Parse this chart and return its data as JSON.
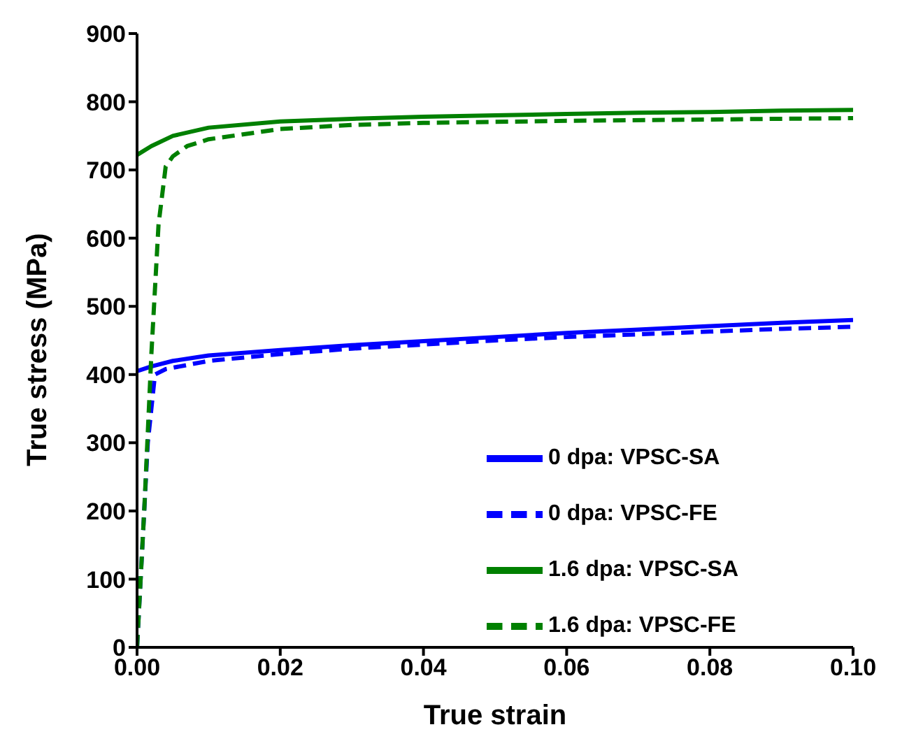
{
  "chart_data": {
    "type": "line",
    "xlabel": "True strain",
    "ylabel": "True stress (MPa)",
    "xlim": [
      0,
      0.1
    ],
    "ylim": [
      0,
      900
    ],
    "xticks": [
      {
        "value": 0,
        "label": "0.00"
      },
      {
        "value": 0.02,
        "label": "0.02"
      },
      {
        "value": 0.04,
        "label": "0.04"
      },
      {
        "value": 0.06,
        "label": "0.06"
      },
      {
        "value": 0.08,
        "label": "0.08"
      },
      {
        "value": 0.1,
        "label": "0.10"
      }
    ],
    "yticks": [
      0,
      100,
      200,
      300,
      400,
      500,
      600,
      700,
      800,
      900
    ],
    "grid": false,
    "legend": "bottom right",
    "marker": "none",
    "series": [
      {
        "name": "0 dpa: VPSC-SA",
        "color": "#0000ff",
        "line_style": "solid",
        "x": [
          0,
          0.002,
          0.005,
          0.01,
          0.02,
          0.03,
          0.04,
          0.05,
          0.06,
          0.07,
          0.08,
          0.09,
          0.1
        ],
        "values": [
          405,
          412,
          420,
          428,
          436,
          443,
          449,
          455,
          461,
          466,
          471,
          476,
          480
        ]
      },
      {
        "name": "0 dpa: VPSC-FE",
        "color": "#0000ff",
        "line_style": "dashed",
        "x": [
          0,
          0.0015,
          0.0025,
          0.004,
          0.01,
          0.02,
          0.03,
          0.04,
          0.05,
          0.06,
          0.07,
          0.08,
          0.09,
          0.1
        ],
        "values": [
          0,
          300,
          400,
          408,
          420,
          430,
          438,
          444,
          450,
          455,
          459,
          463,
          467,
          470
        ]
      },
      {
        "name": "1.6 dpa: VPSC-SA",
        "color": "#008000",
        "line_style": "solid",
        "x": [
          0,
          0.002,
          0.005,
          0.01,
          0.02,
          0.03,
          0.04,
          0.05,
          0.06,
          0.07,
          0.08,
          0.09,
          0.1
        ],
        "values": [
          722,
          735,
          750,
          762,
          771,
          775,
          778,
          780,
          782,
          784,
          785,
          787,
          788
        ]
      },
      {
        "name": "1.6 dpa: VPSC-FE",
        "color": "#008000",
        "line_style": "dashed",
        "x": [
          0,
          0.001,
          0.002,
          0.003,
          0.004,
          0.005,
          0.007,
          0.01,
          0.02,
          0.03,
          0.04,
          0.06,
          0.08,
          0.1
        ],
        "values": [
          0,
          200,
          430,
          620,
          705,
          720,
          735,
          745,
          760,
          766,
          769,
          772,
          774,
          776
        ]
      }
    ]
  }
}
